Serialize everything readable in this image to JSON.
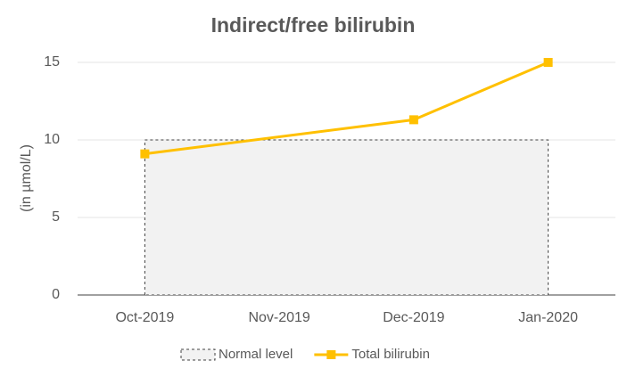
{
  "chart_data": {
    "type": "line",
    "title": "Indirect/free bilirubin",
    "y_label": "(in µmol/L)",
    "xticks": [
      "Oct-2019",
      "Nov-2019",
      "Dec-2019",
      "Jan-2020"
    ],
    "ylim": [
      0,
      15
    ],
    "yticks": [
      0,
      5,
      10,
      15
    ],
    "grid": true,
    "legend": "bottom",
    "series": [
      {
        "name": "Normal level",
        "kind": "area",
        "color": "#f2f2f2",
        "x": [
          "Oct-2019",
          "Jan-2020"
        ],
        "values": [
          10,
          10
        ]
      },
      {
        "name": "Total bilirubin",
        "kind": "line",
        "color": "#ffc000",
        "x": [
          "Oct-2019",
          "Dec-2019",
          "Jan-2020"
        ],
        "values": [
          9.1,
          11.3,
          15
        ]
      }
    ]
  }
}
